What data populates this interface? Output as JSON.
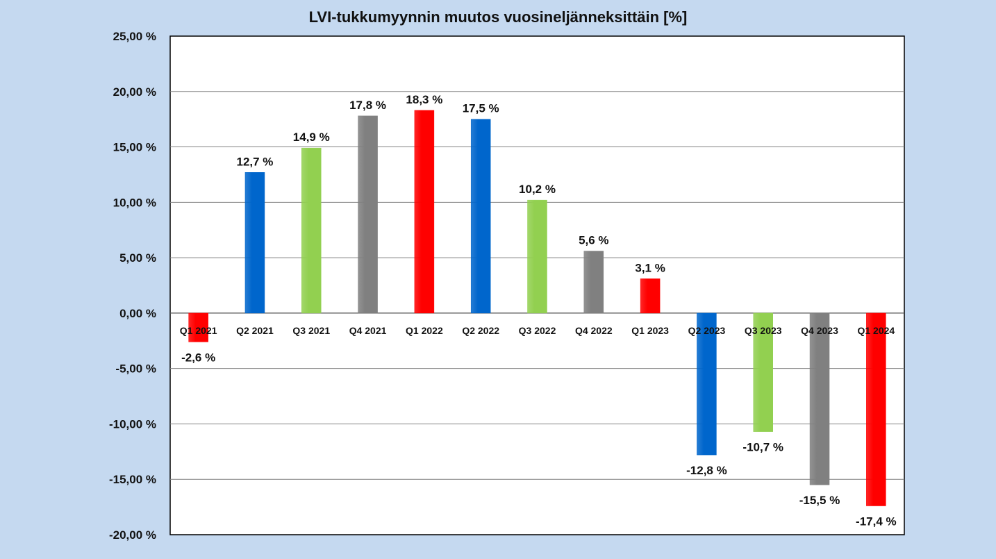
{
  "chart_data": {
    "type": "bar",
    "title": "LVI-tukkumyynnin muutos vuosineljänneksittäin [%]",
    "xlabel": "",
    "ylabel": "",
    "ylim": [
      -20,
      25
    ],
    "yticks": [
      25,
      20,
      15,
      10,
      5,
      0,
      -5,
      -10,
      -15,
      -20
    ],
    "ytick_labels": [
      "25,00 %",
      "20,00 %",
      "15,00 %",
      "10,00 %",
      "5,00 %",
      "0,00 %",
      "-5,00 %",
      "-10,00 %",
      "-15,00 %",
      "-20,00 %"
    ],
    "grid": true,
    "legend": "none",
    "categories": [
      "Q1 2021",
      "Q2 2021",
      "Q3 2021",
      "Q4 2021",
      "Q1 2022",
      "Q2 2022",
      "Q3 2022",
      "Q4 2022",
      "Q1 2023",
      "Q2 2023",
      "Q3 2023",
      "Q4 2023",
      "Q1 2024"
    ],
    "values": [
      -2.6,
      12.7,
      14.9,
      17.8,
      18.3,
      17.5,
      10.2,
      5.6,
      3.1,
      -12.8,
      -10.7,
      -15.5,
      -17.4
    ],
    "data_labels": [
      "-2,6 %",
      "12,7 %",
      "14,9 %",
      "17,8 %",
      "18,3 %",
      "17,5 %",
      "10,2 %",
      "5,6 %",
      "3,1 %",
      "-12,8 %",
      "-10,7 %",
      "-15,5 %",
      "-17,4 %"
    ],
    "colors": [
      "#ff0000",
      "#0066cc",
      "#92d050",
      "#808080",
      "#ff0000",
      "#0066cc",
      "#92d050",
      "#808080",
      "#ff0000",
      "#0066cc",
      "#92d050",
      "#808080",
      "#ff0000"
    ]
  },
  "style": {
    "page_background": "#c5d9f0",
    "plot_background": "#ffffff",
    "gridline_color": "#808080"
  }
}
